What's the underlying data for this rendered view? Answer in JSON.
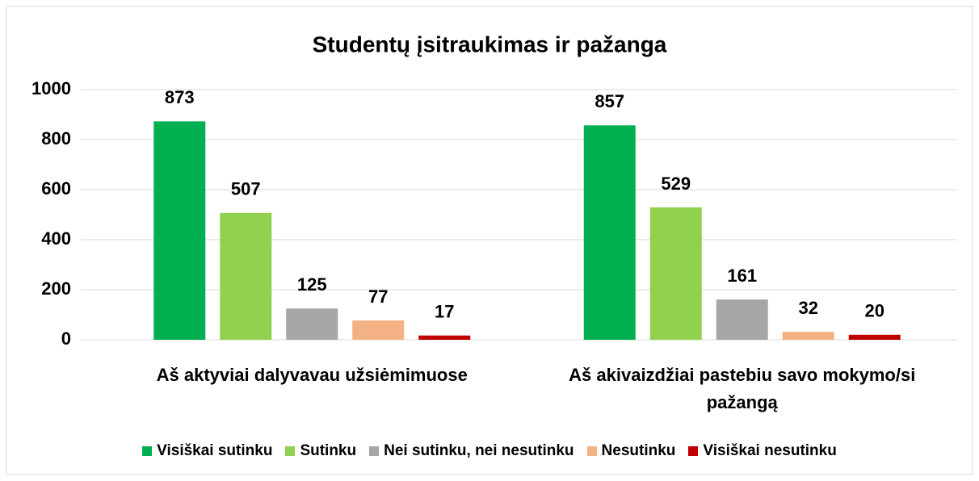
{
  "chart_data": {
    "type": "bar",
    "title": "Studentų įsitraukimas ir pažanga",
    "categories": [
      "Aš aktyviai dalyvavau užsiėmimuose",
      "Aš akivaizdžiai pastebiu savo mokymo/si pažangą"
    ],
    "series": [
      {
        "name": "Visiškai sutinku",
        "color": "#00b050",
        "values": [
          873,
          857
        ]
      },
      {
        "name": "Sutinku",
        "color": "#92d050",
        "values": [
          507,
          529
        ]
      },
      {
        "name": "Nei sutinku, nei nesutinku",
        "color": "#a6a6a6",
        "values": [
          125,
          161
        ]
      },
      {
        "name": "Nesutinku",
        "color": "#f4b183",
        "values": [
          77,
          32
        ]
      },
      {
        "name": "Visiškai nesutinku",
        "color": "#c00000",
        "values": [
          17,
          20
        ]
      }
    ],
    "ylim": [
      0,
      1000
    ],
    "yticks": [
      0,
      200,
      400,
      600,
      800,
      1000
    ],
    "grid": true,
    "legend": "bottom"
  }
}
